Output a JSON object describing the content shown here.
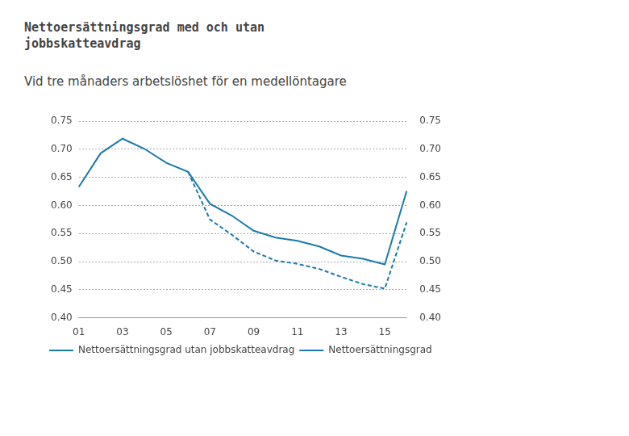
{
  "chart_data": {
    "type": "line",
    "title": "Nettoersättningsgrad med och utan jobbskatteavdrag",
    "subtitle": "Vid tre månaders arbetslöshet för en medellöntagare",
    "categories": [
      "01",
      null,
      "03",
      null,
      "05",
      null,
      "07",
      null,
      "09",
      null,
      "11",
      null,
      "13",
      null,
      "15",
      null
    ],
    "series": [
      {
        "name": "Nettoersättningsgrad utan jobbskatteavdrag",
        "color": "#1a7aab",
        "line_style": "solid",
        "values": [
          0.633,
          0.693,
          0.719,
          0.701,
          0.676,
          0.66,
          0.603,
          0.582,
          0.555,
          0.543,
          0.537,
          0.527,
          0.511,
          0.505,
          0.495,
          0.626
        ]
      },
      {
        "name": "Nettoersättningsgrad",
        "color": "#1a7aab",
        "line_style": "dashed",
        "values": [
          null,
          null,
          null,
          null,
          null,
          0.66,
          0.575,
          0.548,
          0.518,
          0.502,
          0.496,
          0.487,
          0.473,
          0.46,
          0.452,
          0.57
        ]
      }
    ],
    "ylim": [
      0.4,
      0.75
    ],
    "yticks": [
      {
        "value": 0.4,
        "label": "0.40"
      },
      0.45,
      {
        "value": 0.5,
        "label": "0.50"
      },
      0.55,
      {
        "value": 0.6,
        "label": "0.60"
      },
      0.65,
      {
        "value": 0.7,
        "label": "0.70"
      },
      0.75
    ],
    "y2lim": [
      0.4,
      0.75
    ],
    "y2ticks": [
      {
        "value": 0.4,
        "label": "0.40"
      },
      0.45,
      {
        "value": 0.5,
        "label": "0.50"
      },
      0.55,
      {
        "value": 0.6,
        "label": "0.60"
      },
      0.65,
      {
        "value": 0.7,
        "label": "0.70"
      },
      0.75
    ],
    "grid": true,
    "legend": "bottom"
  }
}
